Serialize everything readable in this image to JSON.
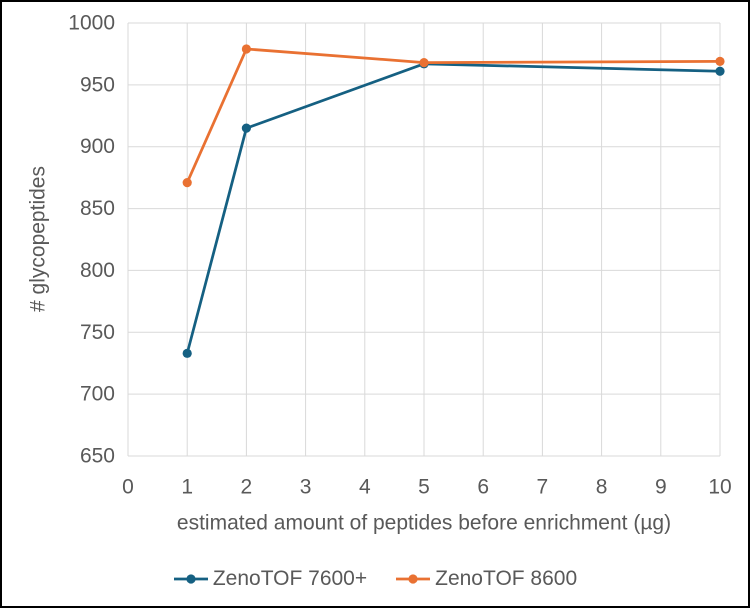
{
  "chart_data": {
    "type": "line",
    "title": "",
    "xlabel": "estimated amount of peptides before enrichment (µg)",
    "ylabel": "# glycopeptides",
    "x": [
      1,
      2,
      5,
      10
    ],
    "series": [
      {
        "name": "ZenoTOF 7600+",
        "color": "#156082",
        "values": [
          733,
          915,
          967,
          961
        ]
      },
      {
        "name": "ZenoTOF 8600",
        "color": "#E97132",
        "values": [
          871,
          979,
          968,
          969
        ]
      }
    ],
    "xlim": [
      0,
      10
    ],
    "ylim": [
      650,
      1000
    ],
    "x_ticks": [
      0,
      1,
      2,
      3,
      4,
      5,
      6,
      7,
      8,
      9,
      10
    ],
    "y_ticks": [
      650,
      700,
      750,
      800,
      850,
      900,
      950,
      1000
    ],
    "grid": "both",
    "marker": "circle",
    "legend_position": "bottom",
    "gridline_color": "#D9D9D9",
    "text_color": "#595959",
    "background_color": "#FFFFFF",
    "border_color": "#000000"
  }
}
